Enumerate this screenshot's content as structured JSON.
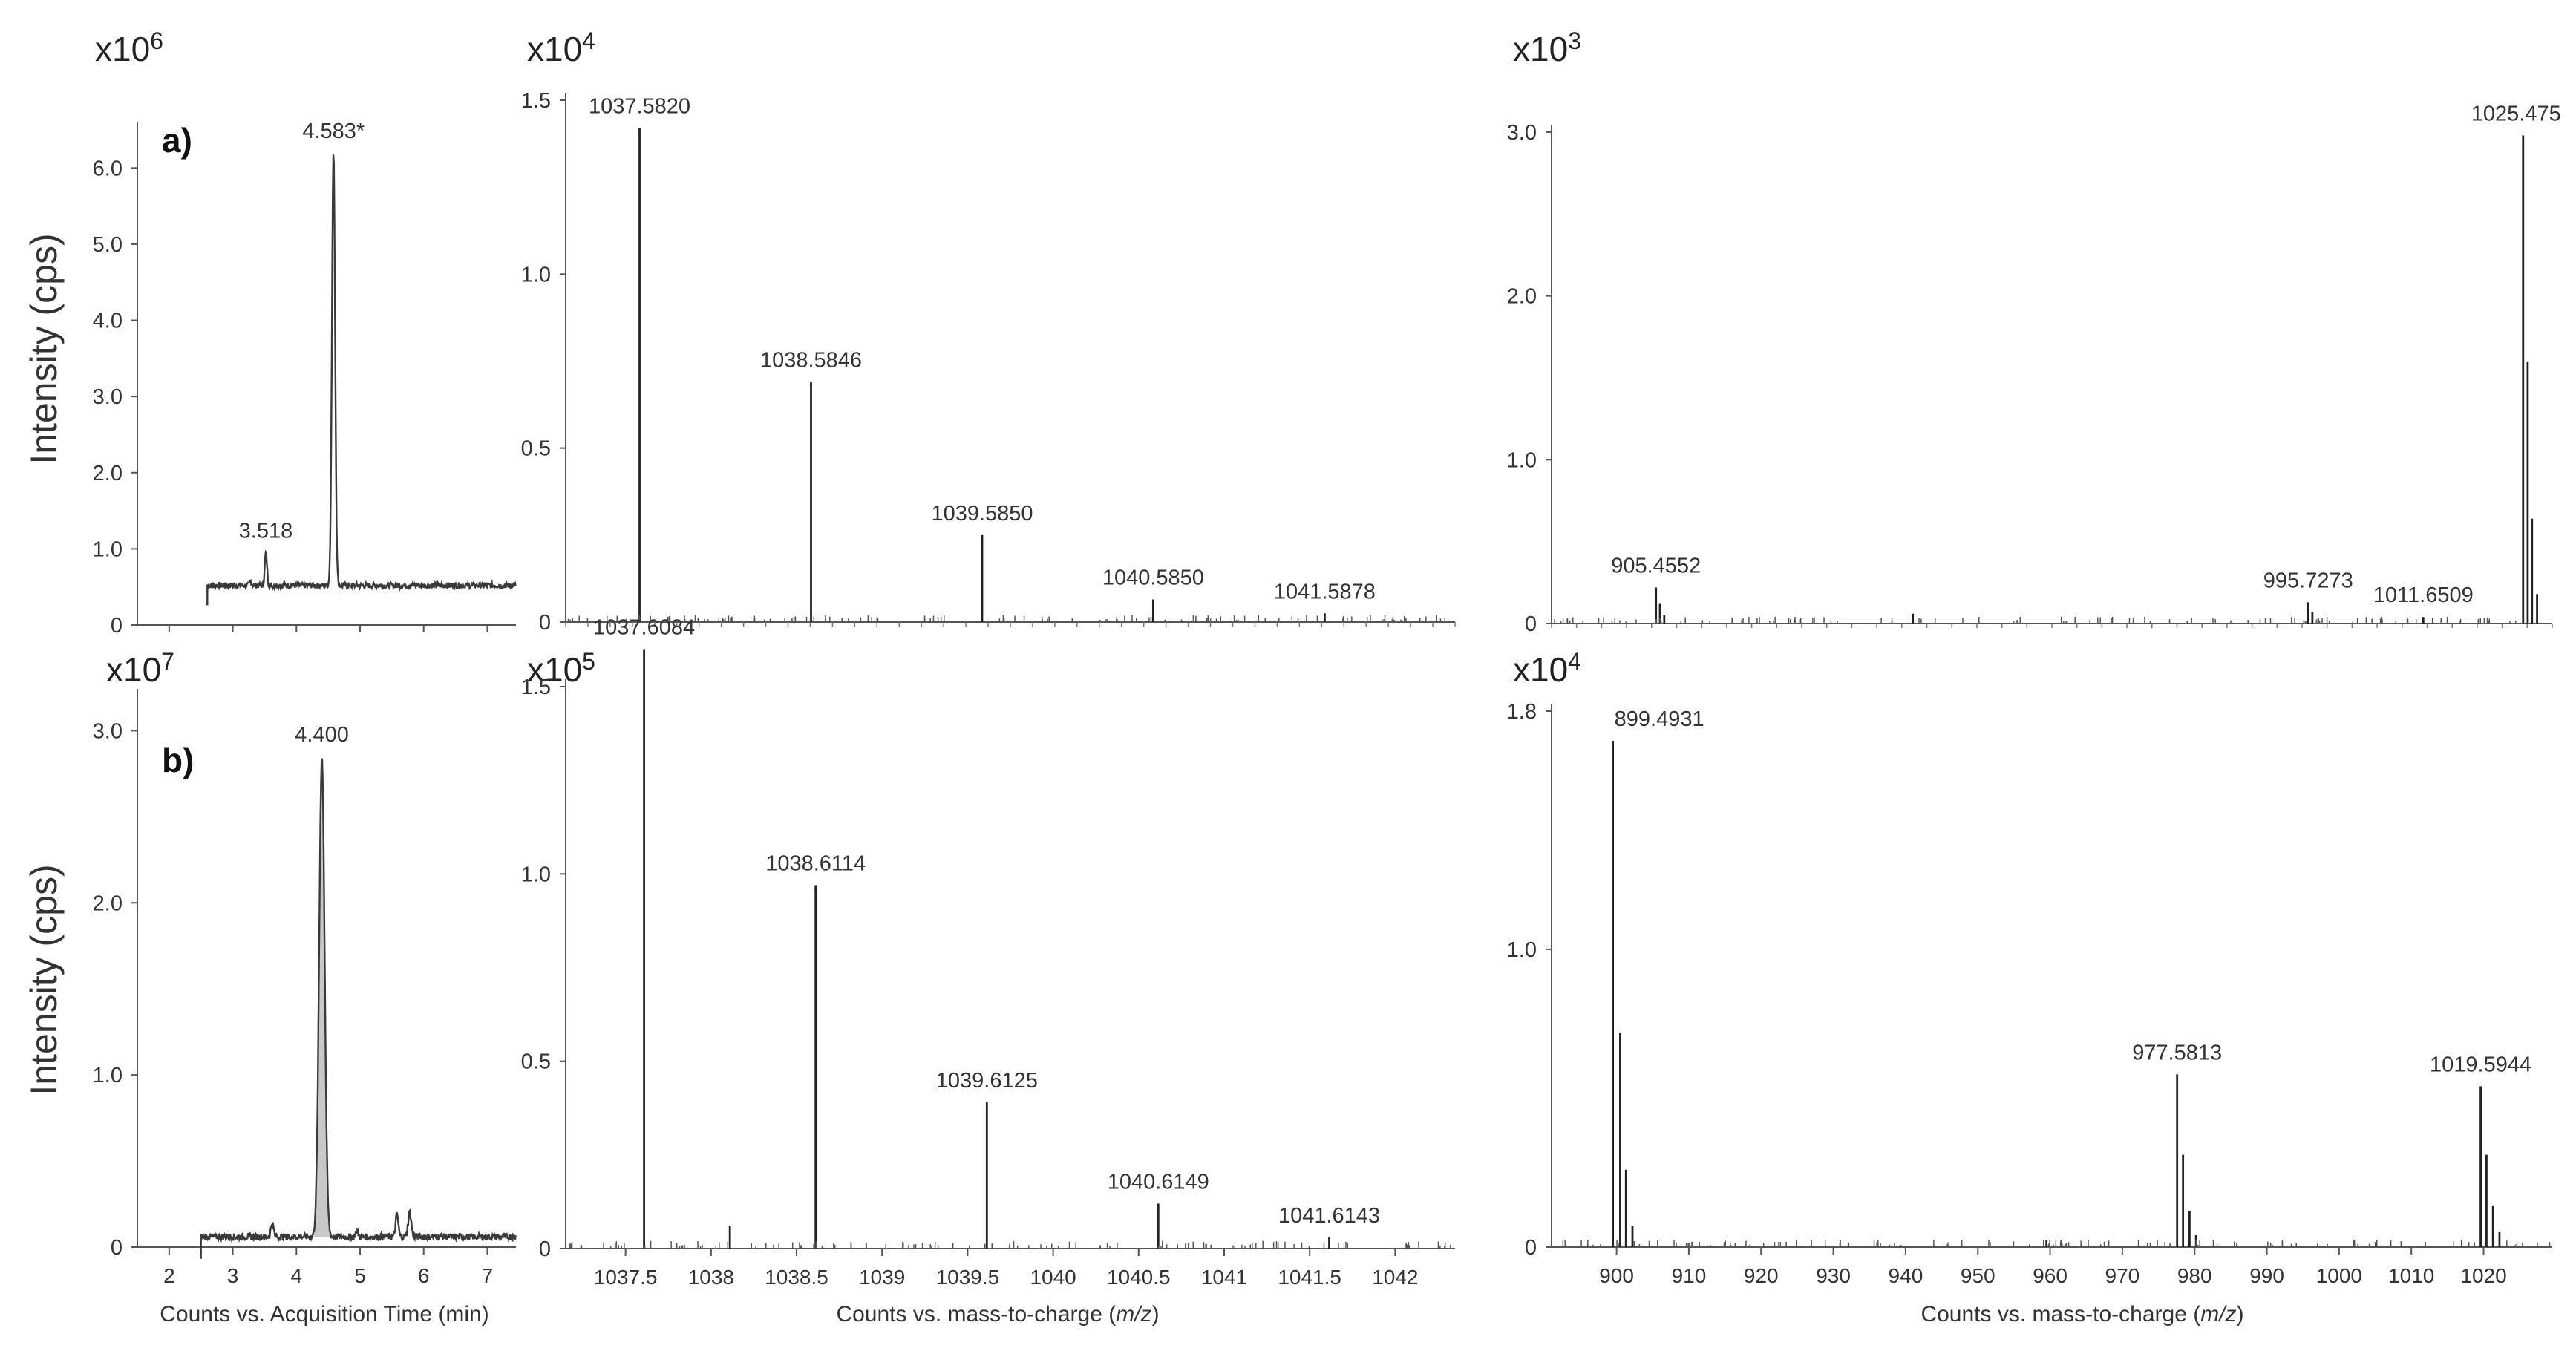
{
  "figure": {
    "ylabel": "Intensity (cps)",
    "row_labels": [
      "a)",
      "b)"
    ],
    "xlabels": {
      "chromatogram": "Counts vs. Acquisition Time (min)",
      "mass_prefix": "Counts vs. mass-to-charge (",
      "mass_italic": "m/z",
      "mass_suffix": ")"
    },
    "colors": {
      "line": "#3a3a3a",
      "fill": "#c8c8c8",
      "text": "#333333"
    }
  },
  "chart_data": [
    {
      "id": "a-chrom",
      "type": "line",
      "multiplier": "x10",
      "exponent": "6",
      "xlabel": "",
      "xlim": [
        1.5,
        7.45
      ],
      "ylim": [
        0,
        6.5
      ],
      "yticks": [
        0,
        1.0,
        2.0,
        3.0,
        4.0,
        5.0,
        6.0
      ],
      "yticklabels": [
        "0",
        "1.0",
        "2.0",
        "3.0",
        "4.0",
        "5.0",
        "6.0"
      ],
      "xticks": [
        2,
        3,
        4,
        5,
        6,
        7
      ],
      "xticklabels": [],
      "baseline": 0.52,
      "start_x": 2.6,
      "peaks": [
        {
          "x": 3.52,
          "y": 0.95,
          "w": 0.025
        },
        {
          "x": 4.583,
          "y": 6.2,
          "w": 0.035
        },
        {
          "x": 3.28,
          "y": 0.58,
          "w": 0.02
        }
      ],
      "fill_peak": false,
      "labels": [
        {
          "x": 3.518,
          "y": 0.95,
          "text": "3.518"
        },
        {
          "x": 4.583,
          "y": 6.2,
          "text": "4.583*"
        }
      ]
    },
    {
      "id": "a-ms1",
      "type": "bar",
      "multiplier": "x10",
      "exponent": "4",
      "xlim": [
        1037.15,
        1042.35
      ],
      "ylim": [
        0,
        1.5
      ],
      "yticks": [
        0,
        0.5,
        1.0,
        1.5
      ],
      "yticklabels": [
        "0",
        "0.5",
        "1.0",
        "1.5"
      ],
      "xticks": [],
      "xticklabels": [],
      "peaks": [
        {
          "x": 1037.582,
          "y": 1.42
        },
        {
          "x": 1038.5846,
          "y": 0.69
        },
        {
          "x": 1039.585,
          "y": 0.25
        },
        {
          "x": 1040.585,
          "y": 0.065
        },
        {
          "x": 1041.5878,
          "y": 0.025
        }
      ],
      "labels": [
        {
          "x": 1037.582,
          "y": 1.42,
          "text": "1037.5820"
        },
        {
          "x": 1038.5846,
          "y": 0.69,
          "text": "1038.5846"
        },
        {
          "x": 1039.585,
          "y": 0.25,
          "text": "1039.5850"
        },
        {
          "x": 1040.585,
          "y": 0.065,
          "text": "1040.5850"
        },
        {
          "x": 1041.5878,
          "y": 0.025,
          "text": "1041.5878"
        }
      ]
    },
    {
      "id": "a-ms2",
      "type": "bar",
      "multiplier": "x10",
      "exponent": "3",
      "xlim": [
        891,
        1029.5
      ],
      "ylim": [
        0,
        3.0
      ],
      "yticks": [
        0,
        1.0,
        2.0,
        3.0
      ],
      "yticklabels": [
        "0",
        "1.0",
        "2.0",
        "3.0"
      ],
      "xticks": [],
      "xticklabels": [],
      "peaks": [
        {
          "x": 905.4552,
          "y": 0.22
        },
        {
          "x": 906.0,
          "y": 0.12
        },
        {
          "x": 906.6,
          "y": 0.05
        },
        {
          "x": 941.0,
          "y": 0.06
        },
        {
          "x": 995.7273,
          "y": 0.13
        },
        {
          "x": 996.3,
          "y": 0.07
        },
        {
          "x": 1011.6509,
          "y": 0.04
        },
        {
          "x": 1025.47,
          "y": 2.98
        },
        {
          "x": 1026.1,
          "y": 1.6
        },
        {
          "x": 1026.7,
          "y": 0.64
        },
        {
          "x": 1027.4,
          "y": 0.18
        }
      ],
      "labels": [
        {
          "x": 905.4552,
          "y": 0.22,
          "text": "905.4552"
        },
        {
          "x": 995.7273,
          "y": 0.13,
          "text": "995.7273"
        },
        {
          "x": 1011.6509,
          "y": 0.04,
          "text": "1011.6509"
        },
        {
          "x": 1025.47,
          "y": 2.98,
          "text": "1025.475"
        }
      ]
    },
    {
      "id": "b-chrom",
      "type": "line",
      "multiplier": "x10",
      "exponent": "7",
      "xlabel": "Counts vs. Acquisition Time (min)",
      "xlim": [
        1.5,
        7.45
      ],
      "ylim": [
        0,
        3.2
      ],
      "yticks": [
        0,
        1.0,
        2.0,
        3.0
      ],
      "yticklabels": [
        "0",
        "1.0",
        "2.0",
        "3.0"
      ],
      "xticks": [
        2,
        3,
        4,
        5,
        6,
        7
      ],
      "xticklabels": [
        "2",
        "3",
        "4",
        "5",
        "6",
        "7"
      ],
      "baseline": 0.06,
      "start_x": 2.5,
      "peaks": [
        {
          "x": 4.4,
          "y": 2.85,
          "w": 0.06
        },
        {
          "x": 3.62,
          "y": 0.14,
          "w": 0.03
        },
        {
          "x": 5.58,
          "y": 0.19,
          "w": 0.03
        },
        {
          "x": 5.78,
          "y": 0.2,
          "w": 0.035
        },
        {
          "x": 4.95,
          "y": 0.1,
          "w": 0.025
        }
      ],
      "fill_peak": true,
      "labels": [
        {
          "x": 4.4,
          "y": 2.85,
          "text": "4.400"
        }
      ]
    },
    {
      "id": "b-ms1",
      "type": "bar",
      "multiplier": "x10",
      "exponent": "5",
      "xlabel": "Counts vs. mass-to-charge (m/z)",
      "xlim": [
        1037.15,
        1042.35
      ],
      "ylim": [
        0,
        1.5
      ],
      "yticks": [
        0,
        0.5,
        1.0,
        1.5
      ],
      "yticklabels": [
        "0",
        "0.5",
        "1.0",
        "1.5"
      ],
      "xticks": [
        1037.5,
        1038,
        1038.5,
        1039,
        1039.5,
        1040,
        1040.5,
        1041,
        1041.5,
        1042
      ],
      "xticklabels": [
        "1037.5",
        "1038",
        "1038.5",
        "1039",
        "1039.5",
        "1040",
        "1040.5",
        "1041",
        "1041.5",
        "1042"
      ],
      "peaks": [
        {
          "x": 1037.6084,
          "y": 1.6
        },
        {
          "x": 1038.11,
          "y": 0.06
        },
        {
          "x": 1038.6114,
          "y": 0.97
        },
        {
          "x": 1039.6125,
          "y": 0.39
        },
        {
          "x": 1040.6149,
          "y": 0.12
        },
        {
          "x": 1041.6143,
          "y": 0.03
        }
      ],
      "labels": [
        {
          "x": 1037.6084,
          "y": 1.6,
          "text": "1037.6084"
        },
        {
          "x": 1038.6114,
          "y": 0.97,
          "text": "1038.6114"
        },
        {
          "x": 1039.6125,
          "y": 0.39,
          "text": "1039.6125"
        },
        {
          "x": 1040.6149,
          "y": 0.12,
          "text": "1040.6149"
        },
        {
          "x": 1041.6143,
          "y": 0.03,
          "text": "1041.6143"
        }
      ]
    },
    {
      "id": "b-ms2",
      "type": "bar",
      "multiplier": "x10",
      "exponent": "4",
      "xlabel": "Counts vs. mass-to-charge (m/z)",
      "xlim": [
        891,
        1029.5
      ],
      "ylim": [
        0,
        1.8
      ],
      "yticks": [
        0,
        1.0,
        1.8
      ],
      "yticklabels": [
        "0",
        "1.0",
        "1.8"
      ],
      "xticks": [
        900,
        910,
        920,
        930,
        940,
        950,
        960,
        970,
        980,
        990,
        1000,
        1010,
        1020
      ],
      "xticklabels": [
        "900",
        "910",
        "920",
        "930",
        "940",
        "950",
        "960",
        "970",
        "980",
        "990",
        "1000",
        "1010",
        "1020"
      ],
      "peaks": [
        {
          "x": 899.4931,
          "y": 1.7
        },
        {
          "x": 900.5,
          "y": 0.72
        },
        {
          "x": 901.3,
          "y": 0.26
        },
        {
          "x": 902.2,
          "y": 0.07
        },
        {
          "x": 959.5,
          "y": 0.025
        },
        {
          "x": 977.5813,
          "y": 0.58
        },
        {
          "x": 978.4,
          "y": 0.31
        },
        {
          "x": 979.3,
          "y": 0.12
        },
        {
          "x": 980.2,
          "y": 0.04
        },
        {
          "x": 1019.5944,
          "y": 0.54
        },
        {
          "x": 1020.4,
          "y": 0.31
        },
        {
          "x": 1021.3,
          "y": 0.14
        },
        {
          "x": 1022.2,
          "y": 0.05
        }
      ],
      "labels": [
        {
          "x": 899.4931,
          "y": 1.7,
          "text": "899.4931"
        },
        {
          "x": 977.5813,
          "y": 0.58,
          "text": "977.5813"
        },
        {
          "x": 1019.5944,
          "y": 0.54,
          "text": "1019.5944"
        }
      ]
    }
  ]
}
